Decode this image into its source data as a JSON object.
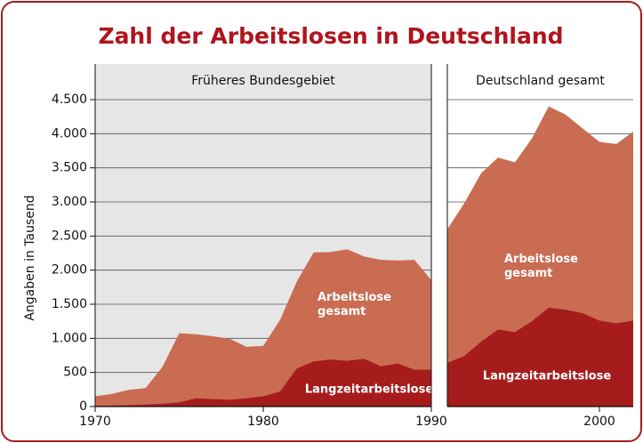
{
  "chart_data": [
    {
      "type": "area",
      "title": "Zahl der Arbeitslosen in Deutschland",
      "ylabel": "Angaben in Tausend",
      "subtitle": "Früheres Bundesgebiet",
      "x": [
        1970,
        1971,
        1972,
        1973,
        1974,
        1975,
        1976,
        1977,
        1978,
        1979,
        1980,
        1981,
        1982,
        1983,
        1984,
        1985,
        1986,
        1987,
        1988,
        1989,
        1990
      ],
      "series": [
        {
          "name": "Arbeitslose gesamt",
          "color": "#c96c52",
          "values": [
            150,
            185,
            245,
            270,
            580,
            1075,
            1060,
            1030,
            995,
            875,
            890,
            1270,
            1835,
            2260,
            2265,
            2305,
            2200,
            2150,
            2140,
            2150,
            1850
          ]
        },
        {
          "name": "Langzeitarbeitslose",
          "color": "#a61c1c",
          "values": [
            10,
            15,
            20,
            30,
            40,
            60,
            120,
            110,
            100,
            120,
            150,
            220,
            560,
            660,
            690,
            670,
            700,
            590,
            630,
            540,
            540
          ]
        }
      ],
      "xlim": [
        1970,
        1990
      ],
      "xticks": [
        1970,
        1980,
        1990
      ],
      "ylim": [
        0,
        4500
      ],
      "yticks": [
        0,
        500,
        {
          "value": 1000,
          "label": "1.000"
        },
        {
          "value": 1500,
          "label": "1.500"
        },
        {
          "value": 2000,
          "label": "2.000"
        },
        {
          "value": 2500,
          "label": "2.500"
        },
        {
          "value": 3000,
          "label": "3.000"
        },
        {
          "value": 3500,
          "label": "3.500"
        },
        {
          "value": 4000,
          "label": "4.000"
        },
        {
          "value": 4500,
          "label": "4.500"
        }
      ],
      "grid": true
    },
    {
      "type": "area",
      "subtitle": "Deutschland gesamt",
      "x": [
        1991,
        1992,
        1993,
        1994,
        1995,
        1996,
        1997,
        1998,
        1999,
        2000,
        2001,
        2002
      ],
      "series": [
        {
          "name": "Arbeitslose gesamt",
          "color": "#c96c52",
          "values": [
            2600,
            2980,
            3420,
            3650,
            3580,
            3930,
            4400,
            4280,
            4080,
            3880,
            3850,
            4030
          ]
        },
        {
          "name": "Langzeitarbeitslose",
          "color": "#a61c1c",
          "values": [
            640,
            740,
            950,
            1130,
            1090,
            1250,
            1450,
            1420,
            1370,
            1260,
            1220,
            1260
          ]
        }
      ],
      "xlim": [
        1991,
        2002
      ],
      "xticks": [
        2000
      ],
      "ylim": [
        0,
        4500
      ],
      "grid": true
    }
  ]
}
